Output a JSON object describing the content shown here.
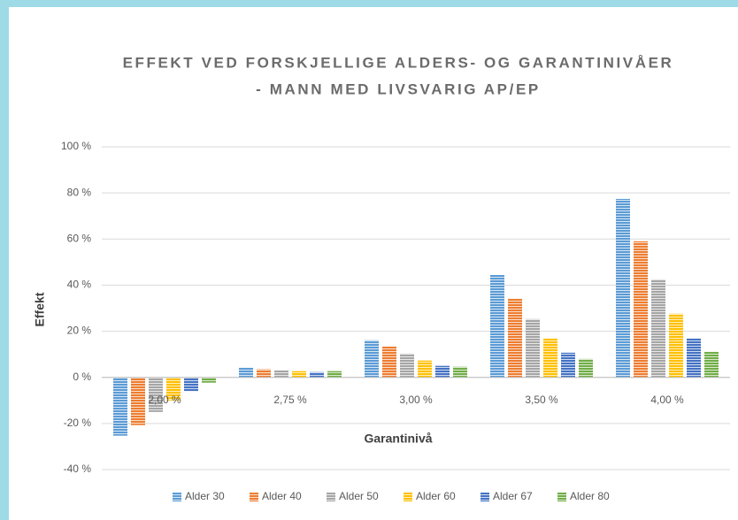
{
  "chart_data": {
    "type": "bar",
    "title": [
      "EFFEKT VED FORSKJELLIGE ALDERS- OG GARANTINIVÅER",
      "- MANN MED LIVSVARIG AP/EP"
    ],
    "xlabel": "Garantinivå",
    "ylabel": "Effekt",
    "categories": [
      "2,00 %",
      "2,75 %",
      "3,00 %",
      "3,50 %",
      "4,00 %"
    ],
    "series": [
      {
        "name": "Alder 30",
        "color": "#5b9bd5",
        "values": [
          -25.3,
          4.2,
          16.1,
          44.4,
          77.4
        ]
      },
      {
        "name": "Alder 40",
        "color": "#ed7d31",
        "values": [
          -20.7,
          3.5,
          13.4,
          34.1,
          59
        ]
      },
      {
        "name": "Alder 50",
        "color": "#a5a5a5",
        "values": [
          -15,
          3,
          10.3,
          25.3,
          42.5
        ]
      },
      {
        "name": "Alder 60",
        "color": "#ffc000",
        "values": [
          -10,
          2.7,
          7.3,
          16.9,
          27.6
        ]
      },
      {
        "name": "Alder 67",
        "color": "#4472c4",
        "values": [
          -6,
          2.3,
          5,
          10.7,
          16.9
        ]
      },
      {
        "name": "Alder 80",
        "color": "#70ad47",
        "values": [
          -2.3,
          2.7,
          4.6,
          8,
          11.1
        ]
      }
    ],
    "ylim": [
      -40,
      100
    ],
    "yticks": [
      {
        "value": -40,
        "label": "-40 %"
      },
      {
        "value": -20,
        "label": "-20 %"
      },
      {
        "value": 0,
        "label": "0 %"
      },
      {
        "value": 20,
        "label": "20 %"
      },
      {
        "value": 40,
        "label": "40 %"
      },
      {
        "value": 60,
        "label": "60 %"
      },
      {
        "value": 80,
        "label": "80 %"
      },
      {
        "value": 100,
        "label": "100 %"
      }
    ],
    "grid": true,
    "legend": "bottom"
  }
}
